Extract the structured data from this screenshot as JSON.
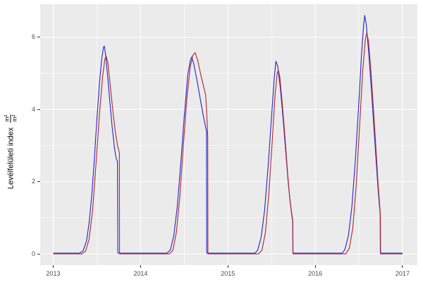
{
  "figure": {
    "background": "#FFFFFF",
    "panel_background": "#EBEBEB",
    "grid_major_color": "#FFFFFF",
    "grid_minor_color": "#FFFFFF",
    "tick_text_color": "#4D4D4D",
    "tick_mark_color": "#333333"
  },
  "y_axis": {
    "title": "Levélfelületi index",
    "unit_numerator": "m²",
    "unit_denominator": "m²",
    "ticks": [
      0,
      2,
      4,
      6
    ],
    "minor_ticks": [
      1,
      3,
      5
    ]
  },
  "x_axis": {
    "ticks": [
      2013,
      2014,
      2015,
      2016,
      2017
    ],
    "minor_ticks": [
      2013.5,
      2014.5,
      2015.5,
      2016.5
    ]
  },
  "chart_data": {
    "type": "line",
    "title": "",
    "xlabel": "",
    "ylabel": "Levélfelületi index (m²/m²)",
    "xlim": [
      2012.85,
      2017.17
    ],
    "ylim": [
      -0.31,
      6.91
    ],
    "x_ticks": [
      2013,
      2014,
      2015,
      2016,
      2017
    ],
    "y_ticks": [
      0,
      2,
      4,
      6
    ],
    "grid": true,
    "legend": "none",
    "series": [
      {
        "name": "blue-series",
        "color": "#2A2ACC",
        "stroke_width": 1.15,
        "points": [
          [
            2013.0,
            0.02
          ],
          [
            2013.3,
            0.02
          ],
          [
            2013.34,
            0.08
          ],
          [
            2013.38,
            0.35
          ],
          [
            2013.41,
            0.85
          ],
          [
            2013.44,
            1.6
          ],
          [
            2013.47,
            2.6
          ],
          [
            2013.5,
            3.75
          ],
          [
            2013.53,
            4.75
          ],
          [
            2013.555,
            5.4
          ],
          [
            2013.575,
            5.72
          ],
          [
            2013.585,
            5.75
          ],
          [
            2013.6,
            5.5
          ],
          [
            2013.625,
            4.85
          ],
          [
            2013.65,
            4.15
          ],
          [
            2013.675,
            3.5
          ],
          [
            2013.7,
            2.95
          ],
          [
            2013.72,
            2.65
          ],
          [
            2013.735,
            2.55
          ],
          [
            2013.74,
            0.02
          ],
          [
            2014.3,
            0.02
          ],
          [
            2014.34,
            0.1
          ],
          [
            2014.38,
            0.5
          ],
          [
            2014.42,
            1.3
          ],
          [
            2014.46,
            2.5
          ],
          [
            2014.5,
            3.8
          ],
          [
            2014.54,
            4.95
          ],
          [
            2014.57,
            5.35
          ],
          [
            2014.585,
            5.45
          ],
          [
            2014.61,
            5.25
          ],
          [
            2014.65,
            4.75
          ],
          [
            2014.69,
            4.2
          ],
          [
            2014.72,
            3.8
          ],
          [
            2014.75,
            3.45
          ],
          [
            2014.755,
            3.4
          ],
          [
            2014.758,
            0.02
          ],
          [
            2015.31,
            0.02
          ],
          [
            2015.34,
            0.1
          ],
          [
            2015.38,
            0.45
          ],
          [
            2015.42,
            1.2
          ],
          [
            2015.46,
            2.4
          ],
          [
            2015.5,
            3.8
          ],
          [
            2015.53,
            4.85
          ],
          [
            2015.55,
            5.33
          ],
          [
            2015.57,
            5.2
          ],
          [
            2015.6,
            4.6
          ],
          [
            2015.63,
            3.8
          ],
          [
            2015.66,
            2.9
          ],
          [
            2015.69,
            2.0
          ],
          [
            2015.715,
            1.4
          ],
          [
            2015.735,
            1.05
          ],
          [
            2015.742,
            0.95
          ],
          [
            2015.744,
            0.02
          ],
          [
            2016.31,
            0.02
          ],
          [
            2016.34,
            0.12
          ],
          [
            2016.38,
            0.5
          ],
          [
            2016.42,
            1.3
          ],
          [
            2016.46,
            2.6
          ],
          [
            2016.5,
            4.2
          ],
          [
            2016.53,
            5.5
          ],
          [
            2016.555,
            6.35
          ],
          [
            2016.567,
            6.6
          ],
          [
            2016.585,
            6.35
          ],
          [
            2016.615,
            5.5
          ],
          [
            2016.645,
            4.5
          ],
          [
            2016.675,
            3.4
          ],
          [
            2016.7,
            2.5
          ],
          [
            2016.72,
            1.8
          ],
          [
            2016.735,
            1.35
          ],
          [
            2016.744,
            1.12
          ],
          [
            2016.746,
            0.02
          ],
          [
            2017.0,
            0.02
          ]
        ]
      },
      {
        "name": "red-series",
        "color": "#B02C34",
        "stroke_width": 1.15,
        "points": [
          [
            2013.0,
            0.0
          ],
          [
            2013.33,
            0.0
          ],
          [
            2013.37,
            0.08
          ],
          [
            2013.41,
            0.4
          ],
          [
            2013.45,
            1.2
          ],
          [
            2013.49,
            2.5
          ],
          [
            2013.53,
            3.9
          ],
          [
            2013.565,
            4.9
          ],
          [
            2013.59,
            5.38
          ],
          [
            2013.605,
            5.48
          ],
          [
            2013.625,
            5.3
          ],
          [
            2013.655,
            4.6
          ],
          [
            2013.685,
            3.9
          ],
          [
            2013.715,
            3.3
          ],
          [
            2013.74,
            2.95
          ],
          [
            2013.752,
            2.85
          ],
          [
            2013.757,
            2.8
          ],
          [
            2013.759,
            0.0
          ],
          [
            2014.33,
            0.0
          ],
          [
            2014.37,
            0.1
          ],
          [
            2014.41,
            0.6
          ],
          [
            2014.45,
            1.6
          ],
          [
            2014.49,
            3.0
          ],
          [
            2014.53,
            4.3
          ],
          [
            2014.57,
            5.2
          ],
          [
            2014.6,
            5.5
          ],
          [
            2014.625,
            5.57
          ],
          [
            2014.655,
            5.35
          ],
          [
            2014.69,
            4.95
          ],
          [
            2014.72,
            4.65
          ],
          [
            2014.745,
            4.4
          ],
          [
            2014.755,
            4.0
          ],
          [
            2014.765,
            3.5
          ],
          [
            2014.769,
            3.2
          ],
          [
            2014.771,
            0.0
          ],
          [
            2015.35,
            0.0
          ],
          [
            2015.39,
            0.1
          ],
          [
            2015.43,
            0.6
          ],
          [
            2015.47,
            1.7
          ],
          [
            2015.51,
            3.2
          ],
          [
            2015.54,
            4.4
          ],
          [
            2015.565,
            5.0
          ],
          [
            2015.578,
            5.09
          ],
          [
            2015.595,
            4.9
          ],
          [
            2015.625,
            4.1
          ],
          [
            2015.655,
            3.2
          ],
          [
            2015.685,
            2.2
          ],
          [
            2015.71,
            1.5
          ],
          [
            2015.735,
            1.0
          ],
          [
            2015.744,
            0.9
          ],
          [
            2015.746,
            0.0
          ],
          [
            2016.35,
            0.0
          ],
          [
            2016.39,
            0.15
          ],
          [
            2016.43,
            0.7
          ],
          [
            2016.47,
            1.9
          ],
          [
            2016.51,
            3.6
          ],
          [
            2016.545,
            5.1
          ],
          [
            2016.575,
            5.95
          ],
          [
            2016.59,
            6.11
          ],
          [
            2016.61,
            5.9
          ],
          [
            2016.64,
            5.0
          ],
          [
            2016.67,
            3.9
          ],
          [
            2016.7,
            2.75
          ],
          [
            2016.72,
            1.95
          ],
          [
            2016.737,
            1.4
          ],
          [
            2016.747,
            1.05
          ],
          [
            2016.749,
            0.0
          ],
          [
            2017.0,
            0.0
          ]
        ]
      }
    ]
  }
}
